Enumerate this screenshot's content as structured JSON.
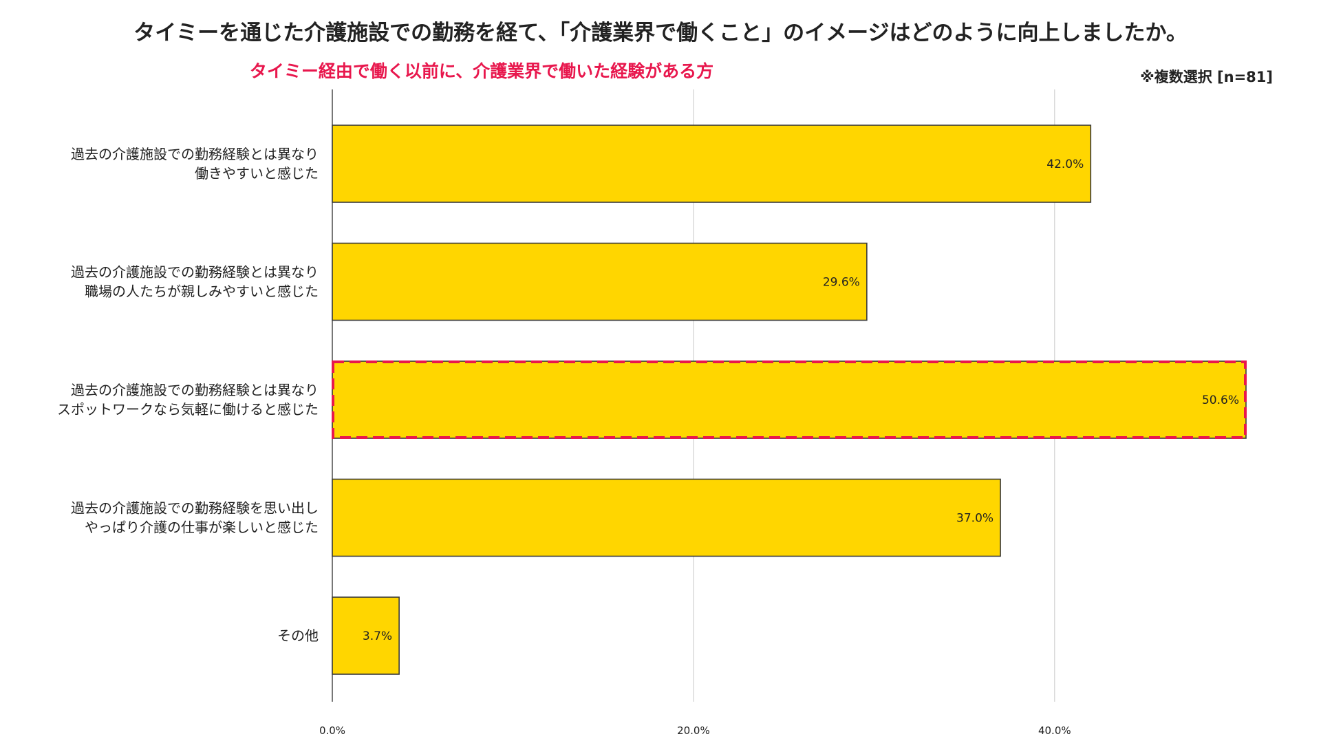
{
  "chart_data": {
    "type": "bar",
    "orientation": "horizontal",
    "title": "タイミーを通じた介護施設での勤務を経て、「介護業界で働くこと」のイメージはどのように向上しましたか。",
    "subtitle": "タイミー経由で働く以前に、介護業界で働いた経験がある方",
    "note": "※複数選択 [n=81]",
    "categories": [
      [
        "過去の介護施設での勤務経験とは異なり",
        "働きやすいと感じた"
      ],
      [
        "過去の介護施設での勤務経験とは異なり",
        "職場の人たちが親しみやすいと感じた"
      ],
      [
        "過去の介護施設での勤務経験とは異なり",
        "スポットワークなら気軽に働けると感じた"
      ],
      [
        "過去の介護施設での勤務経験を思い出し",
        "やっぱり介護の仕事が楽しいと感じた"
      ],
      [
        "その他"
      ]
    ],
    "values": [
      42.0,
      29.6,
      50.6,
      37.0,
      3.7
    ],
    "value_labels": [
      "42.0%",
      "29.6%",
      "50.6%",
      "37.0%",
      "3.7%"
    ],
    "highlighted_index": 2,
    "xlim": [
      0,
      50.6
    ],
    "x_ticks": [
      0,
      20,
      40
    ],
    "x_tick_labels": [
      "0.0%",
      "20.0%",
      "40.0%"
    ],
    "grid": true,
    "legend": "none",
    "colors": {
      "bar_fill": "#FFD600",
      "bar_stroke": "#3a3a3a",
      "highlight": "#E8174D",
      "subtitle": "#E8174D",
      "gridline": "#d0d0d0",
      "axis": "#555555"
    }
  }
}
